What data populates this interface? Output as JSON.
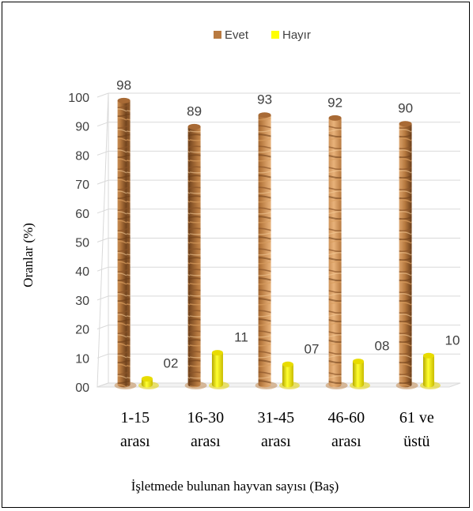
{
  "chart_data": {
    "type": "bar",
    "categories": [
      [
        "1-15",
        "arası"
      ],
      [
        "16-30",
        "arası"
      ],
      [
        "31-45",
        "arası"
      ],
      [
        "46-60",
        "arası"
      ],
      [
        "61 ve",
        "üstü"
      ]
    ],
    "series": [
      {
        "name": "Evet",
        "values": [
          98,
          89,
          93,
          92,
          90
        ],
        "labels": [
          "98",
          "89",
          "93",
          "92",
          "90"
        ],
        "color": "#c98b4a"
      },
      {
        "name": "Hayır",
        "values": [
          2,
          11,
          7,
          8,
          10
        ],
        "labels": [
          "02",
          "11",
          "07",
          "08",
          "10"
        ],
        "color": "#f2e600"
      }
    ],
    "ylabel": "Oranlar (%)",
    "xlabel": "İşletmede bulunan hayvan sayısı (Baş)",
    "yticks": [
      "00",
      "10",
      "20",
      "30",
      "40",
      "50",
      "60",
      "70",
      "80",
      "90",
      "100"
    ],
    "ylim": [
      0,
      100
    ],
    "grid": true,
    "legend_position": "top-center",
    "style": "3d-cylinder"
  }
}
